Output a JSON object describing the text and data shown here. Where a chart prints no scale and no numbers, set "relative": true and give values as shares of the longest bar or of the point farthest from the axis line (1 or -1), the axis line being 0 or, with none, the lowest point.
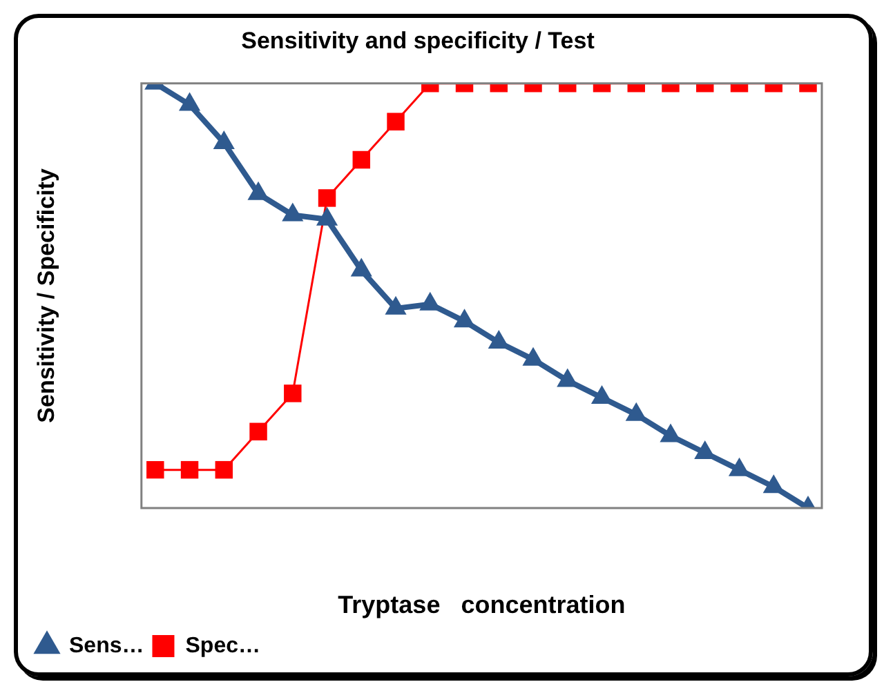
{
  "chart_data": {
    "type": "line",
    "title": "Sensitivity and specificity / Test",
    "xlabel": "Tryptase   concentration",
    "ylabel": "Sensitivity / Specificity",
    "relative": true,
    "legend": "bottom left",
    "grid": false,
    "categories": [
      null,
      null,
      null,
      null,
      null,
      null,
      null,
      null,
      null,
      null,
      null,
      null,
      null,
      null,
      null,
      null,
      null,
      null,
      null,
      null
    ],
    "series": [
      {
        "name": "Sens…",
        "color": "#2f5a8f",
        "marker": "triangle",
        "values": [
          1.0,
          0.95,
          0.86,
          0.74,
          0.69,
          0.68,
          0.56,
          0.47,
          0.48,
          0.44,
          0.39,
          0.35,
          0.3,
          0.26,
          0.22,
          0.17,
          0.13,
          0.09,
          0.05,
          0
        ]
      },
      {
        "name": "Spec…",
        "color": "#ff0000",
        "marker": "square",
        "values": [
          0.09,
          0.09,
          0.09,
          0.18,
          0.27,
          0.73,
          0.82,
          0.91,
          1,
          1,
          1,
          1,
          1,
          1,
          1,
          1,
          1,
          1,
          1,
          1
        ]
      }
    ]
  }
}
